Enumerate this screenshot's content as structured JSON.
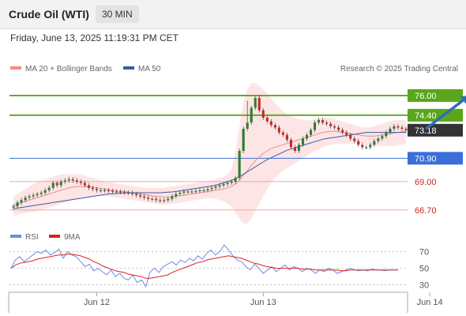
{
  "header": {
    "title": "Crude Oil (WTI)",
    "timeframe": "30 MIN"
  },
  "timestamp": "Friday, June 13, 2025 11:19:31 PM CET",
  "credit": "Research © 2025 Trading Central",
  "colors": {
    "up": "#2e7d32",
    "down": "#c62828",
    "ma20": "#f08c8c",
    "ma50": "#3b5ba5",
    "band": "#fde0e0",
    "resistance": "#5aa61c",
    "pivot": "#3b6fd8",
    "support": "#f3a6a6",
    "rsi": "#6b8de0",
    "rsi_ma": "#e02020",
    "arrow": "#2f6db5",
    "current_box": "#333333"
  },
  "chart_data": [
    {
      "type": "candlestick",
      "legend": [
        {
          "name": "MA 20 + Bollinger Bands",
          "color": "#f08c8c"
        },
        {
          "name": "MA 50",
          "color": "#3b5ba5"
        }
      ],
      "x_labels": [
        "Jun 12",
        "Jun 13",
        "Jun 14"
      ],
      "x_domain": [
        0,
        100
      ],
      "x_label_positions": [
        22,
        64,
        106
      ],
      "ylim": [
        65.4,
        77.6
      ],
      "levels": [
        {
          "value": 76.0,
          "label": "76.00",
          "kind": "resistance"
        },
        {
          "value": 74.4,
          "label": "74.40",
          "kind": "resistance"
        },
        {
          "value": 70.9,
          "label": "70.90",
          "kind": "pivot"
        },
        {
          "value": 69.0,
          "label": "69.00",
          "kind": "support"
        },
        {
          "value": 66.7,
          "label": "66.70",
          "kind": "support"
        }
      ],
      "current_price": {
        "value": 73.18,
        "label": "73.18"
      },
      "projection": {
        "from": [
          105,
          73.3
        ],
        "to": [
          116,
          76.0
        ]
      },
      "closes": [
        67.0,
        67.3,
        67.5,
        67.7,
        67.8,
        67.9,
        68.0,
        68.1,
        68.3,
        68.5,
        68.9,
        68.7,
        69.0,
        69.1,
        69.2,
        69.1,
        69.0,
        68.9,
        68.7,
        68.5,
        68.4,
        68.3,
        68.3,
        68.3,
        68.25,
        68.2,
        68.2,
        68.15,
        68.1,
        68.1,
        68.0,
        67.9,
        67.8,
        67.7,
        67.6,
        67.6,
        67.5,
        67.45,
        67.5,
        67.6,
        67.8,
        68.0,
        68.1,
        68.2,
        68.2,
        68.2,
        68.25,
        68.3,
        68.3,
        68.4,
        68.5,
        68.6,
        68.7,
        68.8,
        68.9,
        69.0,
        69.3,
        71.5,
        73.3,
        73.8,
        75.0,
        75.8,
        74.8,
        74.2,
        73.9,
        73.6,
        73.4,
        73.0,
        72.8,
        72.4,
        71.8,
        71.5,
        72.0,
        72.5,
        72.8,
        73.2,
        73.8,
        74.0,
        73.8,
        73.7,
        73.5,
        73.4,
        73.2,
        73.0,
        72.8,
        72.5,
        72.3,
        72.0,
        71.8,
        71.8,
        72.0,
        72.3,
        72.5,
        72.7,
        73.0,
        73.3,
        73.5,
        73.4,
        73.3,
        73.18
      ],
      "ma20": [
        67.0,
        67.2,
        67.3,
        67.4,
        67.5,
        67.6,
        67.7,
        67.8,
        67.9,
        68.0,
        68.1,
        68.2,
        68.3,
        68.4,
        68.5,
        68.55,
        68.6,
        68.6,
        68.6,
        68.6,
        68.55,
        68.5,
        68.45,
        68.4,
        68.35,
        68.3,
        68.25,
        68.2,
        68.2,
        68.15,
        68.1,
        68.05,
        68.0,
        67.95,
        67.9,
        67.85,
        67.8,
        67.78,
        67.76,
        67.76,
        67.78,
        67.82,
        67.86,
        67.9,
        67.95,
        68.0,
        68.05,
        68.1,
        68.15,
        68.2,
        68.25,
        68.3,
        68.35,
        68.4,
        68.5,
        68.6,
        68.8,
        69.1,
        69.5,
        69.9,
        70.3,
        70.7,
        71.0,
        71.3,
        71.5,
        71.7,
        71.8,
        71.9,
        72.0,
        72.1,
        72.2,
        72.3,
        72.4,
        72.5,
        72.6,
        72.7,
        72.8,
        72.9,
        73.0,
        73.05,
        73.1,
        73.1,
        73.05,
        73.0,
        72.95,
        72.9,
        72.85,
        72.8,
        72.75,
        72.7,
        72.7,
        72.7,
        72.75,
        72.8,
        72.85,
        72.9,
        72.95,
        73.0,
        73.05,
        73.1
      ],
      "ma50": [
        66.8,
        66.85,
        66.9,
        66.95,
        67.0,
        67.05,
        67.1,
        67.15,
        67.2,
        67.25,
        67.3,
        67.35,
        67.4,
        67.45,
        67.5,
        67.55,
        67.6,
        67.65,
        67.7,
        67.75,
        67.8,
        67.85,
        67.9,
        67.95,
        68.0,
        68.02,
        68.04,
        68.06,
        68.08,
        68.1,
        68.1,
        68.1,
        68.1,
        68.1,
        68.1,
        68.1,
        68.1,
        68.1,
        68.12,
        68.14,
        68.16,
        68.2,
        68.25,
        68.3,
        68.35,
        68.4,
        68.45,
        68.5,
        68.55,
        68.6,
        68.65,
        68.7,
        68.8,
        68.9,
        69.0,
        69.1,
        69.25,
        69.4,
        69.6,
        69.8,
        70.0,
        70.2,
        70.4,
        70.6,
        70.8,
        70.95,
        71.1,
        71.25,
        71.4,
        71.55,
        71.65,
        71.75,
        71.85,
        71.95,
        72.05,
        72.15,
        72.25,
        72.35,
        72.45,
        72.5,
        72.55,
        72.6,
        72.65,
        72.7,
        72.75,
        72.8,
        72.85,
        72.9,
        72.95,
        73.0,
        73.0,
        73.0,
        73.0,
        73.0,
        73.0,
        73.0,
        73.0,
        73.0,
        73.0,
        73.0
      ],
      "band_upper": [
        67.8,
        68.0,
        68.2,
        68.4,
        68.6,
        68.8,
        69.0,
        69.1,
        69.2,
        69.3,
        69.4,
        69.5,
        69.6,
        69.6,
        69.6,
        69.6,
        69.6,
        69.6,
        69.5,
        69.4,
        69.3,
        69.2,
        69.1,
        69.0,
        68.95,
        68.9,
        68.85,
        68.8,
        68.75,
        68.7,
        68.65,
        68.6,
        68.55,
        68.5,
        68.5,
        68.5,
        68.5,
        68.5,
        68.5,
        68.55,
        68.6,
        68.65,
        68.7,
        68.75,
        68.8,
        68.85,
        68.9,
        68.95,
        69.0,
        69.05,
        69.1,
        69.2,
        69.3,
        69.4,
        69.6,
        70.0,
        71.5,
        73.5,
        75.5,
        76.5,
        77.0,
        77.0,
        76.8,
        76.5,
        76.2,
        75.8,
        75.4,
        75.0,
        74.7,
        74.5,
        74.3,
        74.2,
        74.1,
        74.0,
        74.0,
        74.0,
        74.1,
        74.2,
        74.2,
        74.2,
        74.2,
        74.1,
        74.0,
        73.9,
        73.8,
        73.7,
        73.6,
        73.5,
        73.4,
        73.4,
        73.4,
        73.5,
        73.6,
        73.7,
        73.8,
        73.9,
        74.0,
        74.0,
        74.0,
        74.0
      ],
      "band_lower": [
        66.2,
        66.3,
        66.4,
        66.45,
        66.5,
        66.55,
        66.6,
        66.7,
        66.8,
        66.9,
        67.0,
        67.1,
        67.2,
        67.3,
        67.4,
        67.5,
        67.6,
        67.6,
        67.7,
        67.75,
        67.8,
        67.85,
        67.85,
        67.85,
        67.8,
        67.75,
        67.7,
        67.65,
        67.6,
        67.55,
        67.5,
        67.45,
        67.4,
        67.35,
        67.3,
        67.25,
        67.2,
        67.15,
        67.15,
        67.15,
        67.2,
        67.25,
        67.3,
        67.35,
        67.4,
        67.45,
        67.5,
        67.55,
        67.6,
        67.65,
        67.65,
        67.6,
        67.5,
        67.4,
        67.2,
        67.0,
        66.5,
        66.0,
        65.6,
        65.6,
        66.0,
        66.6,
        67.2,
        67.8,
        68.4,
        68.9,
        69.3,
        69.6,
        69.9,
        70.1,
        70.3,
        70.5,
        70.7,
        70.9,
        71.1,
        71.3,
        71.5,
        71.6,
        71.8,
        71.9,
        72.0,
        72.05,
        72.1,
        72.1,
        72.1,
        72.1,
        72.1,
        72.1,
        72.1,
        72.0,
        72.0,
        71.95,
        71.9,
        71.9,
        71.9,
        71.9,
        71.9,
        71.95,
        72.0,
        72.1
      ]
    },
    {
      "type": "line",
      "legend": [
        {
          "name": "RSI",
          "color": "#6b8de0"
        },
        {
          "name": "9MA",
          "color": "#e02020"
        }
      ],
      "ylim": [
        25,
        80
      ],
      "y_ticks": [
        30,
        50,
        70
      ],
      "rsi": [
        50,
        60,
        64,
        58,
        62,
        66,
        70,
        68,
        72,
        66,
        69,
        73,
        62,
        70,
        66,
        64,
        58,
        52,
        55,
        47,
        50,
        46,
        42,
        48,
        40,
        44,
        38,
        36,
        42,
        33,
        36,
        28,
        46,
        50,
        45,
        52,
        55,
        58,
        54,
        60,
        57,
        62,
        59,
        65,
        61,
        68,
        72,
        66,
        70,
        78,
        72,
        65,
        60,
        58,
        52,
        48,
        55,
        50,
        44,
        48,
        52,
        46,
        50,
        54,
        48,
        52,
        50,
        46,
        50,
        48,
        44,
        48,
        46,
        50,
        48,
        44,
        46,
        48,
        50,
        48,
        47,
        48,
        47,
        49,
        48,
        48,
        47,
        48,
        48,
        48
      ],
      "ma9": [
        50,
        54,
        56,
        57,
        58,
        59,
        61,
        62,
        63,
        64,
        65,
        66,
        66,
        67,
        67,
        66,
        65,
        63,
        61,
        58,
        56,
        53,
        51,
        49,
        47,
        46,
        45,
        43,
        42,
        41,
        40,
        38,
        38,
        39,
        40,
        41,
        42,
        45,
        47,
        49,
        51,
        53,
        55,
        57,
        58,
        60,
        61,
        62,
        63,
        64,
        65,
        64,
        63,
        62,
        60,
        58,
        56,
        55,
        53,
        52,
        51,
        50,
        50,
        50,
        50,
        50,
        50,
        49,
        49,
        49,
        48,
        48,
        48,
        48,
        48,
        48,
        47,
        47,
        48,
        48,
        48,
        48,
        48,
        48,
        48,
        48,
        48,
        48,
        48,
        48
      ]
    }
  ]
}
